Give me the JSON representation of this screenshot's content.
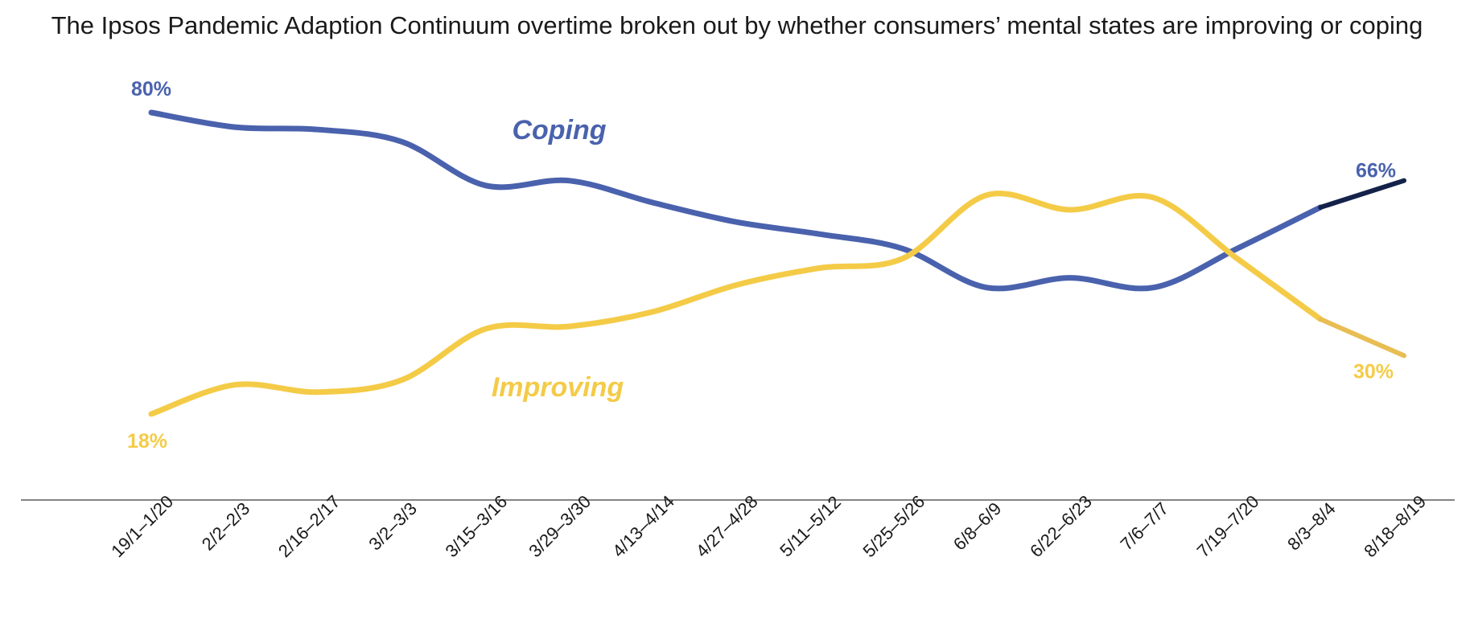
{
  "chart_data": {
    "type": "line",
    "title": "The Ipsos Pandemic Adaption Continuum overtime broken out by whether consumers’ mental states are improving or coping",
    "xlabel": "",
    "ylabel": "",
    "ylim": [
      0,
      100
    ],
    "grid": false,
    "categories": [
      "19/1–1/20",
      "2/2–2/3",
      "2/16–2/17",
      "3/2–3/3",
      "3/15–3/16",
      "3/29–3/30",
      "4/13–4/14",
      "4/27–4/28",
      "5/11–5/12",
      "5/25–5/26",
      "6/8–6/9",
      "6/22–6/23",
      "7/6–7/7",
      "7/19–7/20",
      "8/3–8/4",
      "8/18–8/19"
    ],
    "series": [
      {
        "name": "Coping",
        "color": "#4a62ad",
        "end_color": "#14224a",
        "values": [
          80,
          77,
          76.5,
          74,
          65,
          66,
          61.5,
          57.5,
          55,
          52,
          44,
          46,
          44,
          52,
          60.5,
          66
        ],
        "annotations": [
          {
            "index": 0,
            "label": "80%"
          },
          {
            "index": 15,
            "label": "66%"
          }
        ]
      },
      {
        "name": "Improving",
        "color": "#f4cb47",
        "end_color": "#e8bd53",
        "values": [
          18,
          24,
          22.5,
          25,
          35.5,
          36,
          39,
          44.5,
          48,
          50,
          63,
          60,
          62.5,
          50,
          37.5,
          30
        ],
        "annotations": [
          {
            "index": 0,
            "label": "18%"
          },
          {
            "index": 15,
            "label": "30%"
          }
        ]
      }
    ]
  }
}
